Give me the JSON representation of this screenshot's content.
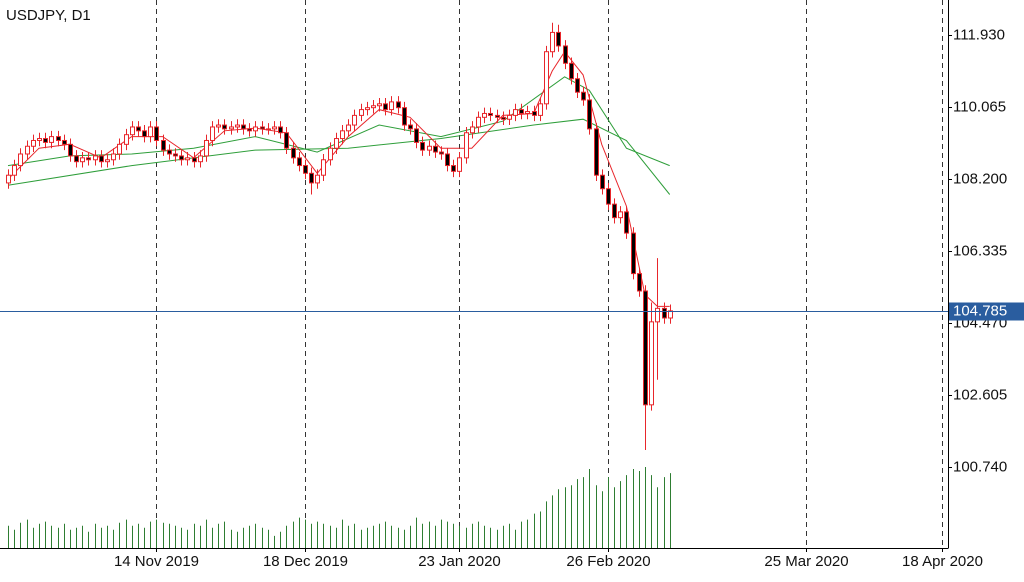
{
  "chart_data": {
    "type": "candlestick",
    "title": "USDJPY, D1",
    "open": [
      108.1,
      108.3,
      108.55,
      108.85,
      109.05,
      109.2,
      109.25,
      109.15,
      109.3,
      109.2,
      109.1,
      108.8,
      108.65,
      108.75,
      108.7,
      108.8,
      108.65,
      108.7,
      108.85,
      109.1,
      109.35,
      109.55,
      109.45,
      109.3,
      109.55,
      109.2,
      108.95,
      108.85,
      108.8,
      108.7,
      108.75,
      108.65,
      108.8,
      109.2,
      109.55,
      109.6,
      109.5,
      109.55,
      109.6,
      109.5,
      109.45,
      109.55,
      109.5,
      109.5,
      109.55,
      109.4,
      109.0,
      108.75,
      108.55,
      108.35,
      108.1,
      108.3,
      108.7,
      109.0,
      109.25,
      109.45,
      109.6,
      109.85,
      110.0,
      110.05,
      110.1,
      110.15,
      110.0,
      110.2,
      110.05,
      109.6,
      109.5,
      109.15,
      108.95,
      109.05,
      108.9,
      108.85,
      108.55,
      108.4,
      108.75,
      109.4,
      109.55,
      109.8,
      109.9,
      109.85,
      109.8,
      109.75,
      109.85,
      110.0,
      109.9,
      109.95,
      109.85,
      110.15,
      111.5,
      112.0,
      111.65,
      111.2,
      110.8,
      110.45,
      110.25,
      109.5,
      108.3,
      107.95,
      107.55,
      107.2,
      107.35,
      106.8,
      105.75,
      105.3,
      102.35,
      104.5,
      104.85,
      104.6
    ],
    "high": [
      108.45,
      108.7,
      109.0,
      109.2,
      109.35,
      109.4,
      109.4,
      109.45,
      109.45,
      109.35,
      109.25,
      108.95,
      108.9,
      108.9,
      108.95,
      108.95,
      108.85,
      109.0,
      109.25,
      109.5,
      109.7,
      109.7,
      109.6,
      109.7,
      109.7,
      109.35,
      109.1,
      109.0,
      108.95,
      108.9,
      108.9,
      108.95,
      109.35,
      109.7,
      109.75,
      109.75,
      109.7,
      109.75,
      109.75,
      109.65,
      109.7,
      109.7,
      109.65,
      109.7,
      109.7,
      109.55,
      109.15,
      108.9,
      108.7,
      108.5,
      108.45,
      108.85,
      109.15,
      109.4,
      109.6,
      109.75,
      110.0,
      110.15,
      110.2,
      110.25,
      110.3,
      110.3,
      110.35,
      110.35,
      110.2,
      109.75,
      109.65,
      109.3,
      109.2,
      109.2,
      109.05,
      109.0,
      108.7,
      108.9,
      109.55,
      109.7,
      109.95,
      110.05,
      110.05,
      110.0,
      109.95,
      110.0,
      110.15,
      110.15,
      110.1,
      110.1,
      110.3,
      111.65,
      112.25,
      112.2,
      111.8,
      111.35,
      110.95,
      110.6,
      110.4,
      109.65,
      108.45,
      108.1,
      107.7,
      107.5,
      107.5,
      106.95,
      105.9,
      105.45,
      105.0,
      106.15,
      105.0,
      104.95
    ],
    "low": [
      107.95,
      108.15,
      108.4,
      108.7,
      108.9,
      109.05,
      109.0,
      109.0,
      109.05,
      108.95,
      108.65,
      108.5,
      108.5,
      108.55,
      108.55,
      108.5,
      108.5,
      108.55,
      108.7,
      108.95,
      109.2,
      109.3,
      109.15,
      109.15,
      109.05,
      108.8,
      108.7,
      108.65,
      108.55,
      108.55,
      108.5,
      108.5,
      108.65,
      109.05,
      109.4,
      109.35,
      109.35,
      109.4,
      109.35,
      109.3,
      109.3,
      109.35,
      109.35,
      109.35,
      109.25,
      108.85,
      108.6,
      108.4,
      108.2,
      107.8,
      107.95,
      108.15,
      108.55,
      108.85,
      109.1,
      109.3,
      109.45,
      109.7,
      109.85,
      109.9,
      109.95,
      109.85,
      109.85,
      109.9,
      109.45,
      109.35,
      109.0,
      108.8,
      108.8,
      108.75,
      108.7,
      108.4,
      108.25,
      108.25,
      108.6,
      109.25,
      109.4,
      109.65,
      109.7,
      109.65,
      109.6,
      109.6,
      109.7,
      109.75,
      109.75,
      109.7,
      109.7,
      110.0,
      111.35,
      111.5,
      111.05,
      110.65,
      110.3,
      110.1,
      109.35,
      108.15,
      107.8,
      107.4,
      107.05,
      107.05,
      106.65,
      105.6,
      105.15,
      101.18,
      102.2,
      103.0,
      104.45,
      104.45
    ],
    "close": [
      108.3,
      108.55,
      108.85,
      109.05,
      109.2,
      109.25,
      109.15,
      109.3,
      109.2,
      109.1,
      108.8,
      108.65,
      108.75,
      108.7,
      108.8,
      108.65,
      108.7,
      108.85,
      109.1,
      109.35,
      109.55,
      109.45,
      109.3,
      109.55,
      109.2,
      108.95,
      108.85,
      108.8,
      108.7,
      108.75,
      108.65,
      108.8,
      109.2,
      109.55,
      109.6,
      109.5,
      109.55,
      109.6,
      109.5,
      109.45,
      109.55,
      109.5,
      109.5,
      109.55,
      109.4,
      109.0,
      108.75,
      108.55,
      108.35,
      108.1,
      108.3,
      108.7,
      109.0,
      109.25,
      109.45,
      109.6,
      109.85,
      110.0,
      110.05,
      110.1,
      110.15,
      110.0,
      110.2,
      110.05,
      109.6,
      109.5,
      109.15,
      108.95,
      109.05,
      108.9,
      108.85,
      108.55,
      108.4,
      108.75,
      109.4,
      109.55,
      109.8,
      109.9,
      109.85,
      109.8,
      109.75,
      109.85,
      110.0,
      109.9,
      109.95,
      109.85,
      110.15,
      111.5,
      112.0,
      111.65,
      111.2,
      110.8,
      110.45,
      110.25,
      109.5,
      108.3,
      107.95,
      107.55,
      107.2,
      107.35,
      106.8,
      105.75,
      105.3,
      102.35,
      104.5,
      104.85,
      104.6,
      104.785
    ],
    "volume": [
      22,
      18,
      25,
      28,
      20,
      24,
      26,
      22,
      20,
      24,
      18,
      20,
      22,
      16,
      24,
      20,
      22,
      18,
      25,
      28,
      22,
      24,
      20,
      26,
      28,
      25,
      24,
      22,
      20,
      18,
      24,
      22,
      28,
      20,
      24,
      26,
      18,
      16,
      20,
      22,
      24,
      20,
      18,
      12,
      16,
      22,
      26,
      30,
      28,
      24,
      26,
      24,
      22,
      20,
      28,
      22,
      24,
      18,
      20,
      22,
      24,
      26,
      22,
      20,
      18,
      22,
      30,
      24,
      26,
      22,
      28,
      26,
      24,
      22,
      20,
      24,
      26,
      22,
      20,
      18,
      22,
      24,
      18,
      26,
      28,
      34,
      36,
      46,
      52,
      58,
      60,
      62,
      68,
      70,
      78,
      62,
      56,
      70,
      60,
      66,
      72,
      78,
      76,
      80,
      72,
      60,
      70,
      74
    ],
    "up_color": "#e8262b",
    "down_color": "#000000",
    "volume_color": "#2e7d32",
    "lines": [
      {
        "color": "#2e9e3a",
        "x": [
          0,
          20,
          40,
          55,
          70,
          85,
          93,
          100,
          107
        ],
        "values": [
          108.04,
          108.55,
          108.95,
          109.0,
          109.25,
          109.6,
          109.75,
          109.2,
          107.8
        ]
      },
      {
        "color": "#2e9e3a",
        "x": [
          0,
          10,
          20,
          30,
          40,
          50,
          60,
          70,
          80,
          90,
          94,
          100,
          107
        ],
        "values": [
          108.55,
          108.8,
          108.85,
          109.0,
          109.3,
          108.9,
          109.6,
          109.3,
          109.7,
          110.85,
          110.5,
          109.0,
          108.55
        ]
      },
      {
        "color": "#e8262b",
        "x": [
          0,
          5,
          10,
          15,
          20,
          25,
          30,
          35,
          40,
          45,
          50,
          55,
          60,
          65,
          70,
          75,
          80,
          85,
          88,
          90,
          93,
          96,
          100,
          103,
          105,
          107
        ],
        "values": [
          108.2,
          109.0,
          109.1,
          108.75,
          109.3,
          109.3,
          108.75,
          109.45,
          109.52,
          109.4,
          108.35,
          109.3,
          110.0,
          109.8,
          109.0,
          109.0,
          109.85,
          109.9,
          111.0,
          111.5,
          110.9,
          109.1,
          107.5,
          105.2,
          104.9,
          104.9
        ]
      }
    ],
    "xlim": [
      -1.3,
      152
    ],
    "xticks": [
      {
        "value": 24,
        "label": "14 Nov 2019"
      },
      {
        "value": 48,
        "label": "18 Dec 2019"
      },
      {
        "value": 73,
        "label": "23 Jan 2020"
      },
      {
        "value": 97,
        "label": "26 Feb 2020"
      },
      {
        "value": 129,
        "label": "25 Mar 2020"
      },
      {
        "value": 151,
        "label": "18 Apr 2020"
      }
    ],
    "ylim": [
      98.64,
      112.84
    ],
    "yticks": [
      {
        "value": 111.93,
        "label": "111.930"
      },
      {
        "value": 110.065,
        "label": "110.065"
      },
      {
        "value": 108.2,
        "label": "108.200"
      },
      {
        "value": 106.335,
        "label": "106.335"
      },
      {
        "value": 104.47,
        "label": "104.470"
      },
      {
        "value": 102.605,
        "label": "102.605"
      },
      {
        "value": 100.74,
        "label": "100.740"
      }
    ],
    "price_line": {
      "value": 104.785,
      "label": "104.785",
      "color": "#2a5d9f"
    },
    "grid": "x"
  }
}
